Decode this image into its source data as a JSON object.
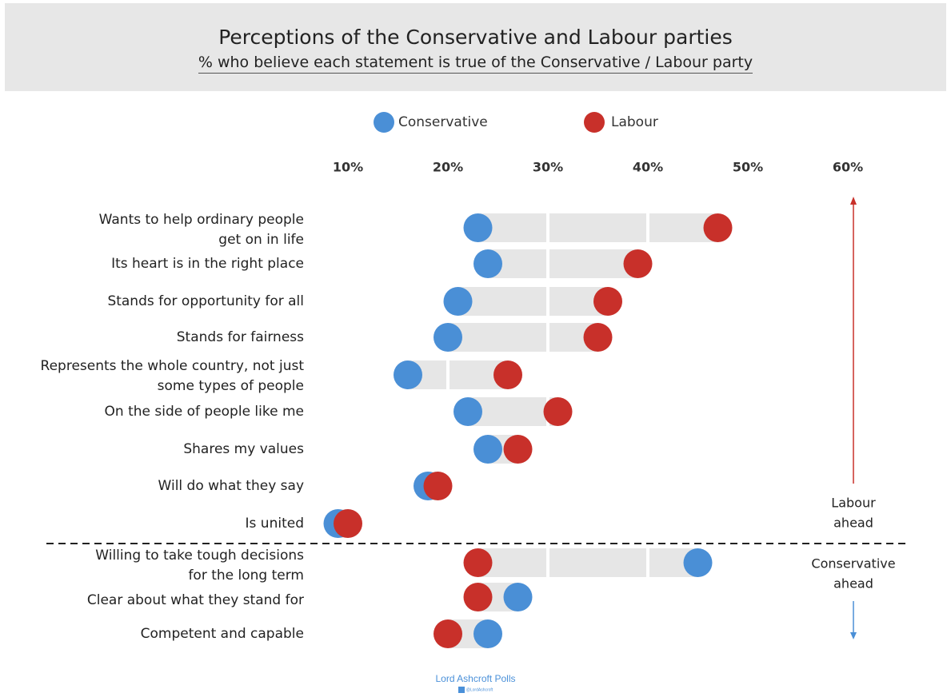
{
  "chart_data": {
    "type": "dot-plot",
    "title": "Perceptions of the Conservative and Labour parties",
    "subtitle": "% who believe each statement is true of the Conservative / Labour party",
    "x_ticks": [
      "10%",
      "20%",
      "30%",
      "40%",
      "50%",
      "60%"
    ],
    "x_range": [
      0,
      60
    ],
    "series": [
      {
        "name": "Conservative",
        "color": "#4a8fd6"
      },
      {
        "name": "Labour",
        "color": "#c8302a"
      }
    ],
    "categories": [
      {
        "label": "Wants to help ordinary people\nget on in life",
        "conservative": 23,
        "labour": 47
      },
      {
        "label": "Its heart is in the right place",
        "conservative": 24,
        "labour": 39
      },
      {
        "label": "Stands for opportunity for all",
        "conservative": 21,
        "labour": 36
      },
      {
        "label": "Stands for fairness",
        "conservative": 20,
        "labour": 35
      },
      {
        "label": "Represents the whole country, not just\nsome types of people",
        "conservative": 16,
        "labour": 26
      },
      {
        "label": "On the side of people like me",
        "conservative": 22,
        "labour": 31
      },
      {
        "label": "Shares my values",
        "conservative": 24,
        "labour": 27
      },
      {
        "label": "Will do what they say",
        "conservative": 18,
        "labour": 19
      },
      {
        "label": "Is united",
        "conservative": 9,
        "labour": 10
      },
      {
        "label": "Willing to take tough decisions\nfor the long term",
        "conservative": 45,
        "labour": 23
      },
      {
        "label": "Clear about what they stand for",
        "conservative": 27,
        "labour": 23
      },
      {
        "label": "Competent and capable",
        "conservative": 24,
        "labour": 20
      }
    ],
    "group_labels": {
      "labour_ahead": "Labour\nahead",
      "conservative_ahead": "Conservative\nahead"
    }
  },
  "footer": {
    "source": "Lord Ashcroft Polls",
    "handle": "@LordAshcroft"
  }
}
